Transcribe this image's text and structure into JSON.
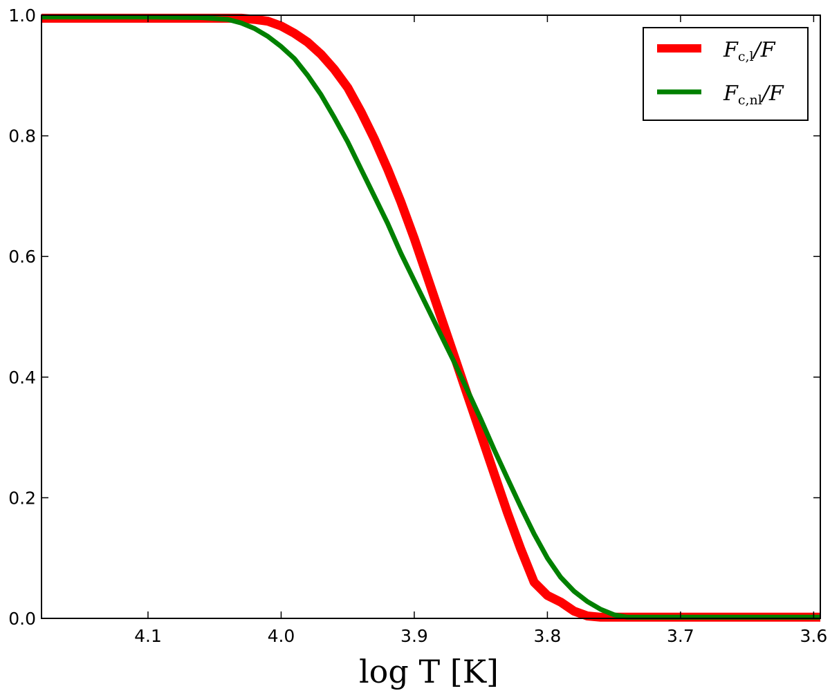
{
  "chart_data": {
    "type": "line",
    "title": "",
    "xlabel": "log T [K]",
    "ylabel": "",
    "xlim": [
      4.18,
      3.595
    ],
    "ylim": [
      0.0,
      1.0
    ],
    "x_axis_reversed": true,
    "grid": false,
    "legend_placement": "top-right",
    "xticks": [
      {
        "value": 4.1,
        "label": "4.1"
      },
      {
        "value": 4.0,
        "label": "4.0"
      },
      {
        "value": 3.9,
        "label": "3.9"
      },
      {
        "value": 3.8,
        "label": "3.8"
      },
      {
        "value": 3.7,
        "label": "3.7"
      },
      {
        "value": 3.6,
        "label": "3.6"
      }
    ],
    "yticks": [
      {
        "value": 0.0,
        "label": "0.0"
      },
      {
        "value": 0.2,
        "label": "0.2"
      },
      {
        "value": 0.4,
        "label": "0.4"
      },
      {
        "value": 0.6,
        "label": "0.6"
      },
      {
        "value": 0.8,
        "label": "0.8"
      },
      {
        "value": 1.0,
        "label": "1.0"
      }
    ],
    "series": [
      {
        "name": "F_c,l / F",
        "legend_main": "F",
        "legend_sub": "c,l",
        "legend_tail": "/F",
        "color": "#ff0000",
        "points": [
          [
            4.18,
            0.995
          ],
          [
            4.1,
            0.995
          ],
          [
            4.06,
            0.995
          ],
          [
            4.03,
            0.995
          ],
          [
            4.02,
            0.993
          ],
          [
            4.01,
            0.99
          ],
          [
            4.0,
            0.982
          ],
          [
            3.99,
            0.97
          ],
          [
            3.98,
            0.955
          ],
          [
            3.97,
            0.935
          ],
          [
            3.96,
            0.91
          ],
          [
            3.95,
            0.88
          ],
          [
            3.94,
            0.84
          ],
          [
            3.93,
            0.795
          ],
          [
            3.92,
            0.745
          ],
          [
            3.91,
            0.69
          ],
          [
            3.9,
            0.63
          ],
          [
            3.89,
            0.565
          ],
          [
            3.88,
            0.5
          ],
          [
            3.87,
            0.435
          ],
          [
            3.86,
            0.37
          ],
          [
            3.85,
            0.305
          ],
          [
            3.84,
            0.24
          ],
          [
            3.83,
            0.175
          ],
          [
            3.82,
            0.115
          ],
          [
            3.81,
            0.06
          ],
          [
            3.8,
            0.038
          ],
          [
            3.79,
            0.027
          ],
          [
            3.78,
            0.012
          ],
          [
            3.77,
            0.004
          ],
          [
            3.76,
            0.002
          ],
          [
            3.7,
            0.002
          ],
          [
            3.595,
            0.002
          ]
        ]
      },
      {
        "name": "F_c,nl / F",
        "legend_main": "F",
        "legend_sub": "c,nl",
        "legend_tail": "/F",
        "color": "#008000",
        "points": [
          [
            4.18,
            0.997
          ],
          [
            4.1,
            0.997
          ],
          [
            4.06,
            0.996
          ],
          [
            4.04,
            0.993
          ],
          [
            4.03,
            0.987
          ],
          [
            4.02,
            0.978
          ],
          [
            4.01,
            0.965
          ],
          [
            4.0,
            0.948
          ],
          [
            3.99,
            0.928
          ],
          [
            3.98,
            0.9
          ],
          [
            3.97,
            0.868
          ],
          [
            3.96,
            0.83
          ],
          [
            3.95,
            0.79
          ],
          [
            3.94,
            0.745
          ],
          [
            3.93,
            0.7
          ],
          [
            3.92,
            0.655
          ],
          [
            3.91,
            0.605
          ],
          [
            3.9,
            0.56
          ],
          [
            3.89,
            0.515
          ],
          [
            3.88,
            0.47
          ],
          [
            3.87,
            0.425
          ],
          [
            3.86,
            0.378
          ],
          [
            3.85,
            0.33
          ],
          [
            3.84,
            0.28
          ],
          [
            3.83,
            0.232
          ],
          [
            3.82,
            0.185
          ],
          [
            3.81,
            0.14
          ],
          [
            3.8,
            0.1
          ],
          [
            3.79,
            0.068
          ],
          [
            3.78,
            0.045
          ],
          [
            3.77,
            0.028
          ],
          [
            3.76,
            0.015
          ],
          [
            3.75,
            0.006
          ],
          [
            3.74,
            0.002
          ],
          [
            3.7,
            0.002
          ],
          [
            3.595,
            0.002
          ]
        ]
      }
    ]
  }
}
